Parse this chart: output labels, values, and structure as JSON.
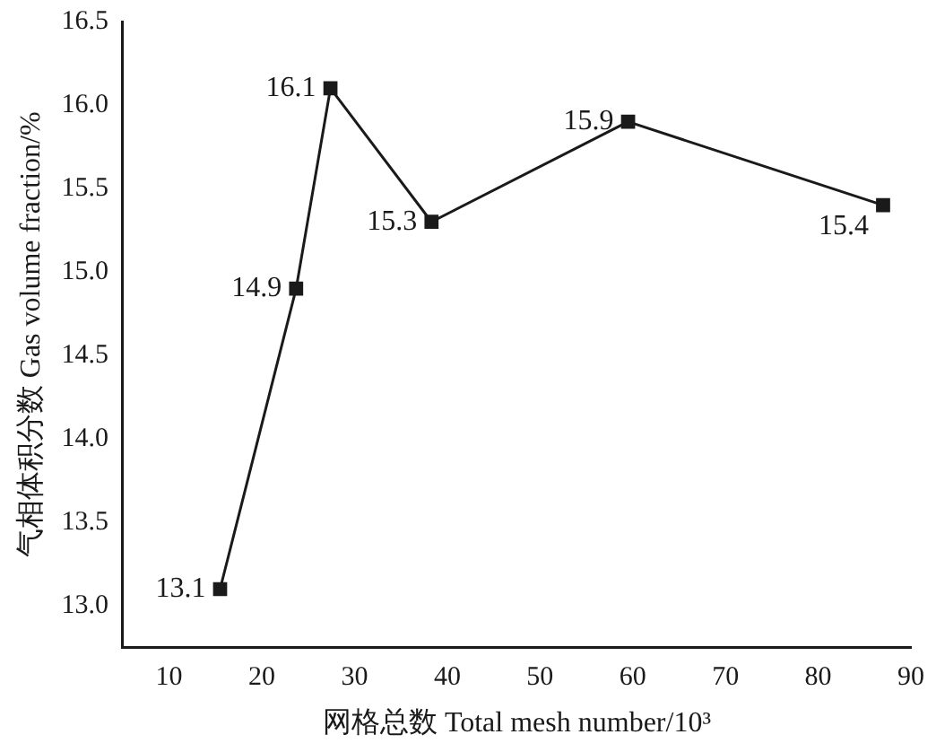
{
  "chart_data": {
    "type": "line",
    "xlabel": "网格总数 Total mesh number/10³",
    "ylabel": "气相体积分数 Gas volume fraction/%",
    "x": [
      15.5,
      23.7,
      27.4,
      38.3,
      59.5,
      87
    ],
    "series": [
      {
        "color": "#1a1a1a",
        "values": [
          13.1,
          14.9,
          16.1,
          15.3,
          15.9,
          15.4
        ]
      }
    ],
    "xlim": [
      5,
      90
    ],
    "xticks": [
      10,
      20,
      30,
      40,
      50,
      60,
      70,
      80,
      90
    ],
    "ylim": [
      12.75,
      16.5
    ],
    "yticks": [
      {
        "value": 13,
        "label": "13.0"
      },
      {
        "value": 13.5,
        "label": "13.5"
      },
      {
        "value": 14,
        "label": "14.0"
      },
      {
        "value": 14.5,
        "label": "14.5"
      },
      {
        "value": 15,
        "label": "15.0"
      },
      {
        "value": 15.5,
        "label": "15.5"
      },
      {
        "value": 16,
        "label": "16.0"
      },
      {
        "value": 16.5,
        "label": "16.5"
      }
    ],
    "grid": false,
    "legend": false,
    "marker": "square",
    "line_style": "solid",
    "data_labels": true
  }
}
